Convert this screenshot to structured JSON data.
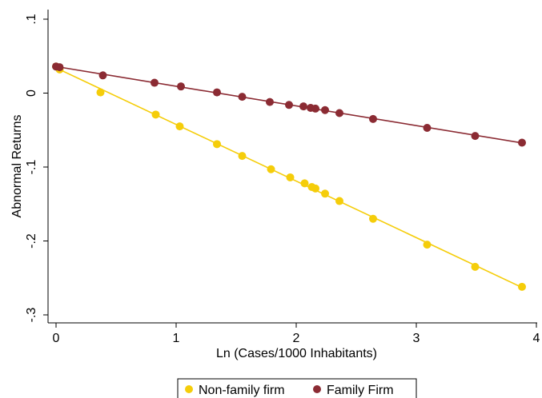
{
  "chart_data": {
    "type": "scatter",
    "title": "",
    "xlabel": "Ln (Cases/1000 Inhabitants)",
    "ylabel": "Abnormal Returns",
    "xlim": [
      0,
      4
    ],
    "ylim": [
      -0.3,
      0.1
    ],
    "xticks": [
      0,
      1,
      2,
      3,
      4
    ],
    "xtick_labels": [
      "0",
      "1",
      "2",
      "3",
      "4"
    ],
    "yticks": [
      -0.3,
      -0.2,
      -0.1,
      0,
      0.1
    ],
    "ytick_labels": [
      "-.3",
      "-.2",
      "-.1",
      "0",
      ".1"
    ],
    "grid": false,
    "legend_position": "bottom",
    "series": [
      {
        "name": "Non-family firm",
        "color": "#F5CD0A",
        "marker": "circle",
        "fit_line": true,
        "x": [
          0.0,
          0.03,
          0.37,
          0.83,
          1.03,
          1.34,
          1.55,
          1.79,
          1.95,
          2.07,
          2.13,
          2.16,
          2.24,
          2.36,
          2.64,
          3.09,
          3.49,
          3.88
        ],
        "y": [
          0.036,
          0.032,
          0.001,
          -0.029,
          -0.045,
          -0.069,
          -0.085,
          -0.103,
          -0.114,
          -0.122,
          -0.127,
          -0.129,
          -0.136,
          -0.146,
          -0.17,
          -0.205,
          -0.235,
          -0.262
        ]
      },
      {
        "name": "Family Firm",
        "color": "#8B2B33",
        "marker": "circle",
        "fit_line": true,
        "x": [
          0.0,
          0.03,
          0.39,
          0.82,
          1.04,
          1.34,
          1.55,
          1.78,
          1.94,
          2.06,
          2.12,
          2.16,
          2.24,
          2.36,
          2.64,
          3.09,
          3.49,
          3.88
        ],
        "y": [
          0.036,
          0.035,
          0.024,
          0.014,
          0.009,
          0.001,
          -0.005,
          -0.012,
          -0.016,
          -0.018,
          -0.02,
          -0.021,
          -0.023,
          -0.027,
          -0.035,
          -0.047,
          -0.058,
          -0.067
        ]
      }
    ]
  }
}
